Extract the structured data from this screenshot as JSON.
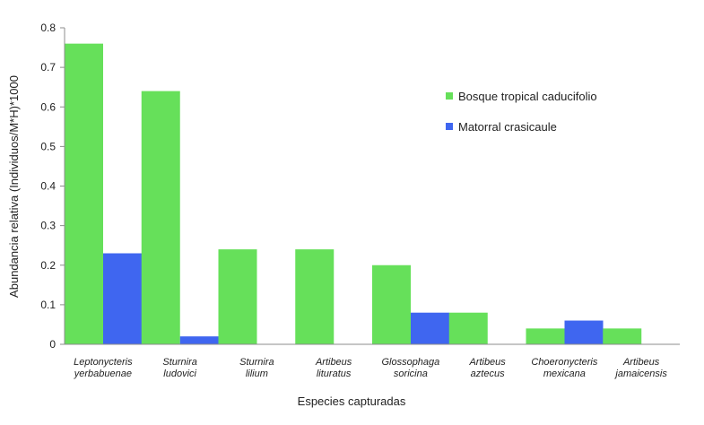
{
  "chart_data": {
    "type": "bar",
    "categories": [
      [
        "Leptonycteris",
        "yerbabuenae"
      ],
      [
        "Sturnira",
        "ludovici"
      ],
      [
        "Sturnira",
        "lilium"
      ],
      [
        "Artibeus",
        "lituratus"
      ],
      [
        "Glossophaga",
        "soricina"
      ],
      [
        "Artibeus",
        "aztecus"
      ],
      [
        "Choeronycteris",
        "mexicana"
      ],
      [
        "Artibeus",
        "jamaicensis"
      ]
    ],
    "series": [
      {
        "name": "Bosque tropical caducifolio",
        "color": "#66e05a",
        "values": [
          0.76,
          0.64,
          0.24,
          0.24,
          0.2,
          0.08,
          0.04,
          0.04
        ]
      },
      {
        "name": "Matorral crasicaule",
        "color": "#3f66f0",
        "values": [
          0.23,
          0.02,
          0,
          0,
          0.08,
          0,
          0.06,
          0
        ]
      }
    ],
    "yticks": [
      "0",
      "0.1",
      "0.2",
      "0.3",
      "0.4",
      "0.5",
      "0.6",
      "0.7",
      "0.8"
    ],
    "ylim": [
      0,
      0.8
    ],
    "xlabel": "Especies capturadas",
    "ylabel": "Abundancia relativa (Individuos/M*H)*1000",
    "legend_position": "right"
  }
}
